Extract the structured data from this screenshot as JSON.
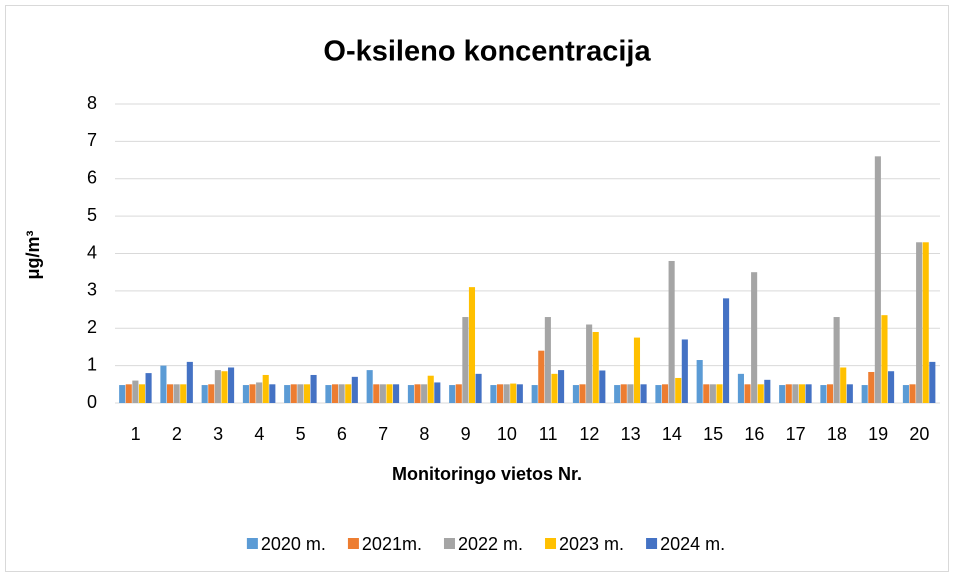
{
  "chart_data": {
    "type": "bar",
    "title": "O-ksileno koncentracija",
    "x_label": "Monitoringo vietos Nr.",
    "y_label": "μg/m³",
    "categories": [
      "1",
      "2",
      "3",
      "4",
      "5",
      "6",
      "7",
      "8",
      "9",
      "10",
      "11",
      "12",
      "13",
      "14",
      "15",
      "16",
      "17",
      "18",
      "19",
      "20"
    ],
    "series": [
      {
        "name": "2020 m.",
        "color": "#5b9bd5",
        "values": [
          0.48,
          1.0,
          0.48,
          0.48,
          0.48,
          0.48,
          0.88,
          0.48,
          0.48,
          0.48,
          0.48,
          0.48,
          0.48,
          0.48,
          1.15,
          0.78,
          0.48,
          0.48,
          0.48,
          0.48
        ]
      },
      {
        "name": "2021m.",
        "color": "#ed7d31",
        "values": [
          0.5,
          0.5,
          0.5,
          0.5,
          0.5,
          0.5,
          0.5,
          0.5,
          0.5,
          0.5,
          1.4,
          0.5,
          0.5,
          0.5,
          0.5,
          0.5,
          0.5,
          0.5,
          0.83,
          0.5
        ]
      },
      {
        "name": "2022 m.",
        "color": "#a5a5a5",
        "values": [
          0.6,
          0.5,
          0.88,
          0.55,
          0.5,
          0.5,
          0.5,
          0.5,
          2.3,
          0.5,
          2.3,
          2.1,
          0.5,
          3.8,
          0.5,
          3.5,
          0.5,
          2.3,
          6.6,
          4.3
        ]
      },
      {
        "name": "2023 m.",
        "color": "#ffc000",
        "values": [
          0.5,
          0.5,
          0.85,
          0.75,
          0.5,
          0.5,
          0.5,
          0.73,
          3.1,
          0.52,
          0.78,
          1.9,
          1.75,
          0.67,
          0.5,
          0.5,
          0.5,
          0.95,
          2.35,
          4.3
        ]
      },
      {
        "name": "2024 m.",
        "color": "#4472c4",
        "values": [
          0.8,
          1.1,
          0.95,
          0.5,
          0.75,
          0.7,
          0.5,
          0.55,
          0.78,
          0.5,
          0.88,
          0.87,
          0.5,
          1.7,
          2.8,
          0.62,
          0.5,
          0.5,
          0.85,
          1.1
        ]
      }
    ],
    "ylim": [
      0,
      8
    ],
    "yticks": [
      0,
      1,
      2,
      3,
      4,
      5,
      6,
      7,
      8
    ],
    "grid": true,
    "legend": "bottom"
  }
}
